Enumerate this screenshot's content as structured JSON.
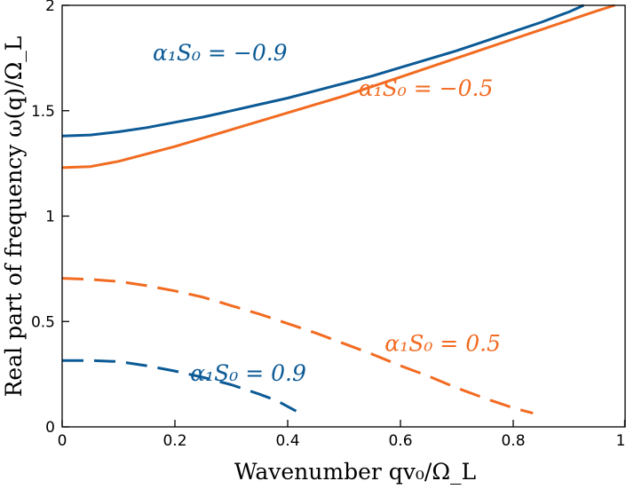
{
  "chart_data": {
    "type": "line",
    "xlabel": "Wavenumber qv₀/Ω_L",
    "ylabel": "Real part of frequency ω(q)/Ω_L",
    "xlim": [
      0,
      1
    ],
    "ylim": [
      0,
      2
    ],
    "xticks": [
      "0",
      "0.2",
      "0.4",
      "0.6",
      "0.8",
      "1"
    ],
    "yticks": [
      "0",
      "0.5",
      "1",
      "1.5",
      "2"
    ],
    "grid": false,
    "colors": {
      "blue": "#0b5a96",
      "orange": "#f26b21"
    },
    "series": [
      {
        "name": "α₁S₀ = −0.9",
        "color": "#0b5a96",
        "style": "solid",
        "x": [
          0,
          0.05,
          0.1,
          0.15,
          0.2,
          0.25,
          0.3,
          0.35,
          0.4,
          0.45,
          0.5,
          0.55,
          0.6,
          0.65,
          0.7,
          0.75,
          0.8,
          0.85,
          0.9,
          0.925
        ],
        "y": [
          1.38,
          1.385,
          1.4,
          1.42,
          1.445,
          1.47,
          1.5,
          1.53,
          1.56,
          1.595,
          1.63,
          1.665,
          1.705,
          1.745,
          1.785,
          1.83,
          1.875,
          1.92,
          1.97,
          2.0
        ]
      },
      {
        "name": "α₁S₀ = −0.5",
        "color": "#f26b21",
        "style": "solid",
        "x": [
          0,
          0.05,
          0.1,
          0.15,
          0.2,
          0.25,
          0.3,
          0.35,
          0.4,
          0.45,
          0.5,
          0.55,
          0.6,
          0.65,
          0.7,
          0.75,
          0.8,
          0.85,
          0.9,
          0.95,
          0.98
        ],
        "y": [
          1.23,
          1.235,
          1.26,
          1.295,
          1.33,
          1.37,
          1.41,
          1.45,
          1.49,
          1.53,
          1.57,
          1.615,
          1.66,
          1.705,
          1.75,
          1.795,
          1.84,
          1.885,
          1.93,
          1.975,
          2.0
        ]
      },
      {
        "name": "α₁S₀ = 0.5",
        "color": "#f26b21",
        "style": "dashed",
        "x": [
          0,
          0.05,
          0.1,
          0.15,
          0.2,
          0.25,
          0.3,
          0.35,
          0.4,
          0.45,
          0.5,
          0.55,
          0.6,
          0.65,
          0.7,
          0.75,
          0.8,
          0.835
        ],
        "y": [
          0.705,
          0.7,
          0.69,
          0.67,
          0.645,
          0.615,
          0.575,
          0.535,
          0.49,
          0.445,
          0.395,
          0.345,
          0.29,
          0.24,
          0.185,
          0.135,
          0.09,
          0.065
        ]
      },
      {
        "name": "α₁S₀ = 0.9",
        "color": "#0b5a96",
        "style": "dashed",
        "x": [
          0,
          0.05,
          0.1,
          0.15,
          0.2,
          0.25,
          0.3,
          0.35,
          0.38,
          0.415
        ],
        "y": [
          0.315,
          0.315,
          0.31,
          0.29,
          0.265,
          0.235,
          0.2,
          0.155,
          0.125,
          0.075
        ]
      }
    ],
    "annotations": [
      {
        "text": "α₁S₀ = −0.9",
        "x": 0.28,
        "y": 1.74,
        "color": "#0b5a96",
        "series": 0
      },
      {
        "text": "α₁S₀ = −0.5",
        "x": 0.645,
        "y": 1.57,
        "color": "#f26b21",
        "series": 1
      },
      {
        "text": "α₁S₀ = 0.5",
        "x": 0.675,
        "y": 0.36,
        "color": "#f26b21",
        "series": 2
      },
      {
        "text": "α₁S₀ = 0.9",
        "x": 0.33,
        "y": 0.22,
        "color": "#0b5a96",
        "series": 3
      }
    ]
  }
}
